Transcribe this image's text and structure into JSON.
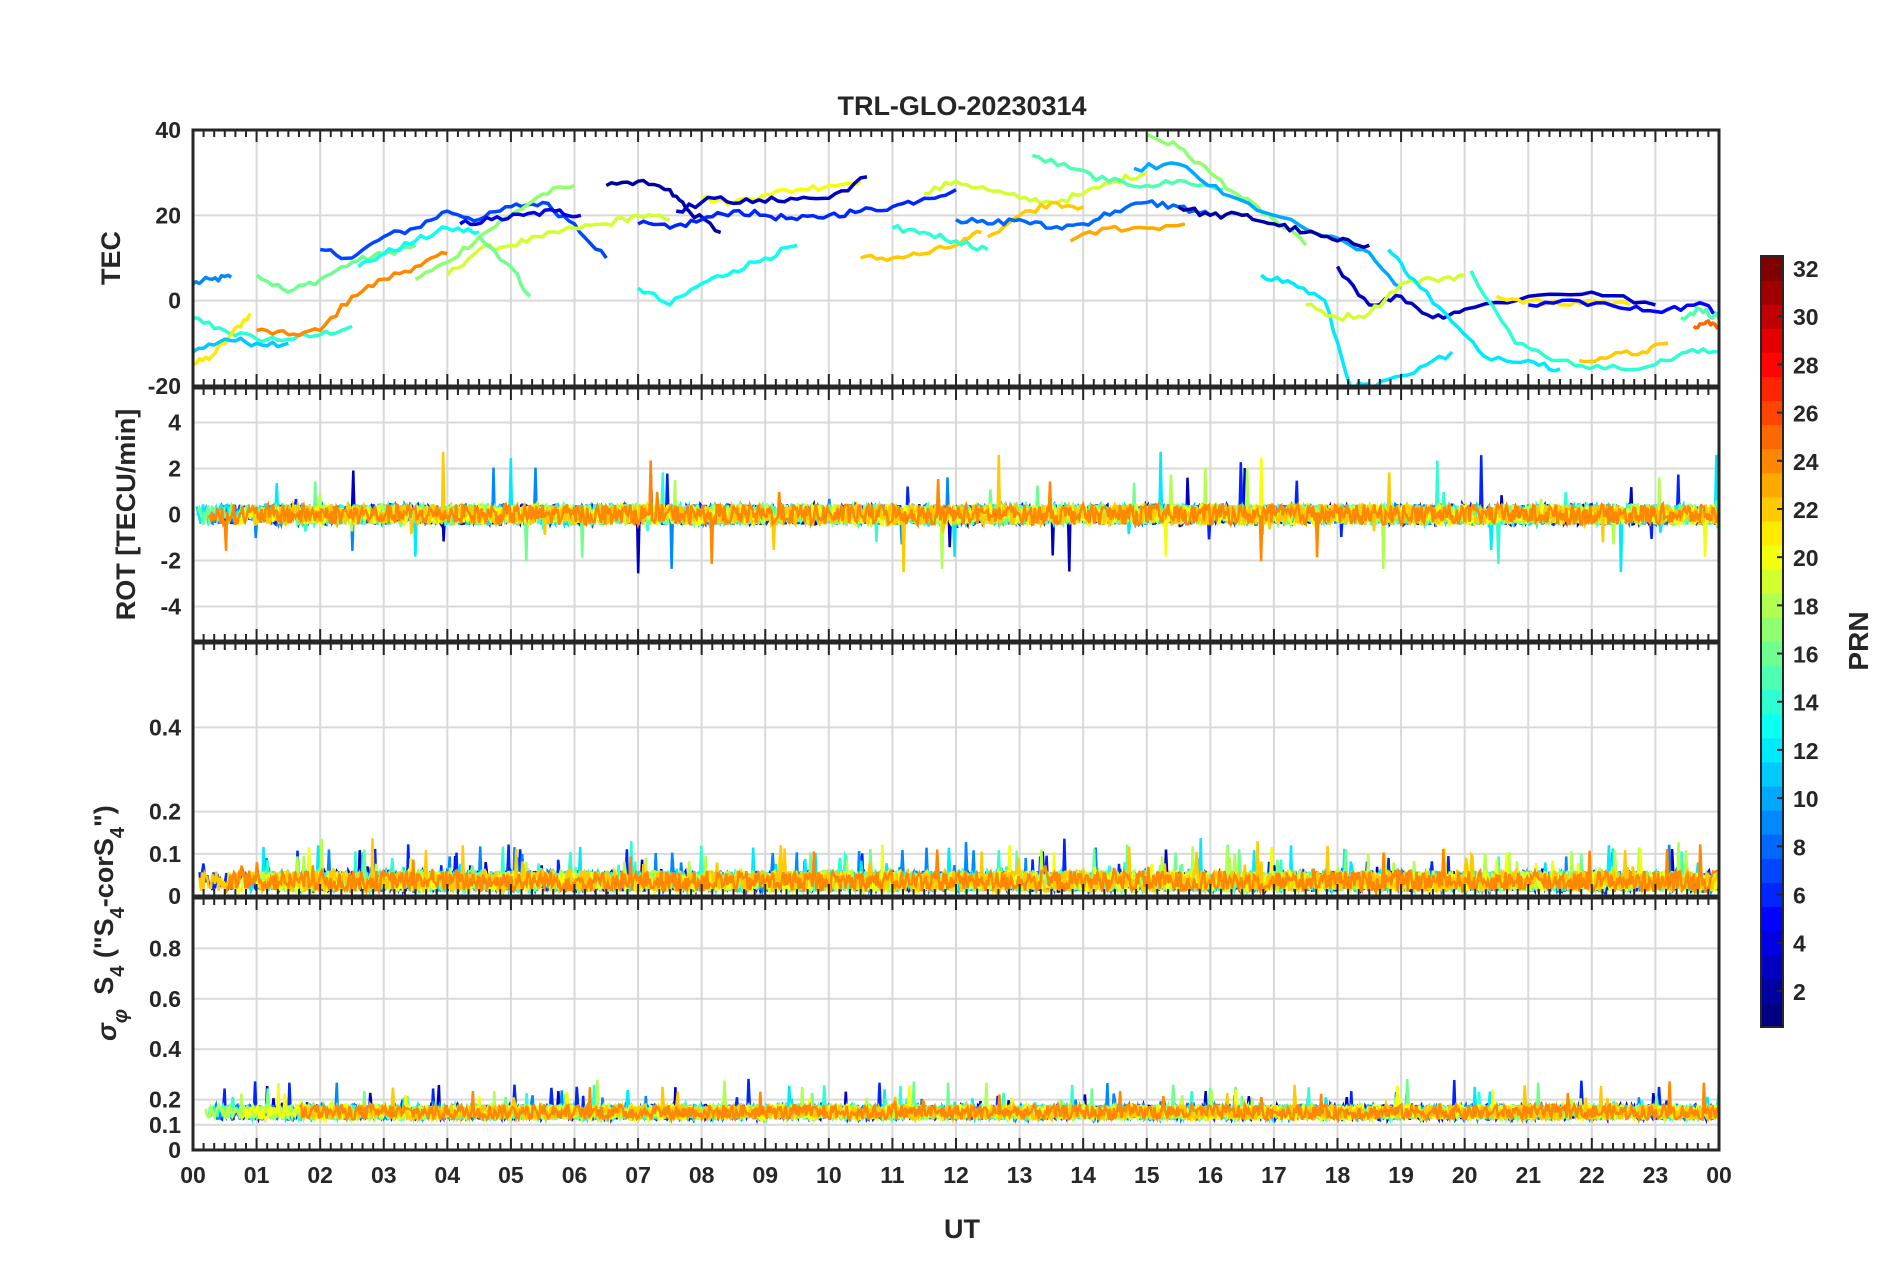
{
  "chart_data": {
    "type": "line",
    "title": "TRL-GLO-20230314",
    "xlabel": "UT",
    "x_ticks": [
      "00",
      "01",
      "02",
      "03",
      "04",
      "05",
      "06",
      "07",
      "08",
      "09",
      "10",
      "11",
      "12",
      "13",
      "14",
      "15",
      "16",
      "17",
      "18",
      "19",
      "20",
      "21",
      "22",
      "23",
      "00"
    ],
    "xlim": [
      0,
      24
    ],
    "colorbar": {
      "label": "PRN",
      "range": [
        1,
        32
      ],
      "ticks": [
        "2",
        "4",
        "6",
        "8",
        "10",
        "12",
        "14",
        "16",
        "18",
        "20",
        "22",
        "24",
        "26",
        "28",
        "30",
        "32"
      ],
      "colormap": "jet"
    },
    "panels": [
      {
        "name": "tec",
        "ylabel": "TEC",
        "ylim": [
          -20,
          40
        ],
        "y_ticks": [
          "40",
          "20",
          "0",
          "-20"
        ],
        "series": [
          {
            "prn": 9,
            "x": [
              0,
              0.3,
              0.6
            ],
            "y": [
              4,
              5,
              5.5
            ]
          },
          {
            "prn": 14,
            "x": [
              0,
              0.5,
              1.0,
              1.5,
              2.0,
              2.5
            ],
            "y": [
              -4,
              -7,
              -9,
              -9,
              -8,
              -6
            ]
          },
          {
            "prn": 21,
            "x": [
              0,
              0.3,
              0.6,
              0.9
            ],
            "y": [
              -15,
              -13,
              -8,
              -3
            ]
          },
          {
            "prn": 11,
            "x": [
              0,
              0.5,
              1.0,
              1.5
            ],
            "y": [
              -12,
              -9,
              -10,
              -10
            ]
          },
          {
            "prn": 16,
            "x": [
              1.0,
              1.5,
              2.0,
              2.5,
              3.0,
              3.5
            ],
            "y": [
              6,
              2,
              5,
              9,
              11,
              13
            ]
          },
          {
            "prn": 24,
            "x": [
              1.0,
              1.5,
              2.0,
              2.5,
              3.0,
              3.5,
              4.0
            ],
            "y": [
              -7,
              -8,
              -7,
              1,
              5,
              8,
              11
            ]
          },
          {
            "prn": 7,
            "x": [
              2.0,
              2.5,
              3.0,
              3.5,
              4.0,
              4.5,
              5.0,
              5.5,
              6.0,
              6.5
            ],
            "y": [
              12,
              10,
              15,
              17,
              21,
              19,
              22,
              23,
              18,
              10
            ]
          },
          {
            "prn": 13,
            "x": [
              2.6,
              3.0,
              3.5,
              4.0,
              4.5
            ],
            "y": [
              8,
              11,
              14,
              17,
              16
            ]
          },
          {
            "prn": 17,
            "x": [
              3.5,
              4.0,
              4.5,
              5.0,
              5.5,
              6.0
            ],
            "y": [
              5,
              9,
              15,
              20,
              25,
              27
            ]
          },
          {
            "prn": 19,
            "x": [
              4.0,
              4.5,
              5.0,
              5.5,
              6.0,
              6.5,
              7.0,
              7.5
            ],
            "y": [
              6,
              12,
              13,
              15,
              17,
              18,
              20,
              19
            ]
          },
          {
            "prn": 4,
            "x": [
              4.2,
              4.7,
              5.2,
              5.7,
              6.1
            ],
            "y": [
              18,
              19,
              20,
              21,
              20
            ]
          },
          {
            "prn": 16,
            "x": [
              4.5,
              5.0,
              5.3
            ],
            "y": [
              15,
              8,
              1
            ]
          },
          {
            "prn": 2,
            "x": [
              6.5,
              7.0,
              7.5,
              7.8,
              8.3
            ],
            "y": [
              27,
              28,
              26,
              21,
              16
            ]
          },
          {
            "prn": 13,
            "x": [
              7.0,
              7.5,
              8.0,
              8.5,
              9.0,
              9.5
            ],
            "y": [
              3,
              -1,
              4,
              7,
              10,
              13
            ]
          },
          {
            "prn": 6,
            "x": [
              7.0,
              7.5,
              8.0,
              8.5,
              9.0,
              9.5,
              10.0,
              10.5,
              11.0,
              11.5,
              12.0
            ],
            "y": [
              18,
              17,
              19,
              21,
              20,
              19,
              20,
              21,
              22,
              24,
              26
            ]
          },
          {
            "prn": 20,
            "x": [
              8.0,
              8.5,
              9.0,
              9.5,
              10.0,
              10.5
            ],
            "y": [
              24,
              23,
              25,
              26,
              27,
              28
            ]
          },
          {
            "prn": 3,
            "x": [
              7.6,
              8.2,
              8.8,
              9.4,
              10.0,
              10.6
            ],
            "y": [
              21,
              24,
              23,
              24,
              24,
              29
            ]
          },
          {
            "prn": 22,
            "x": [
              10.5,
              11.0,
              11.5,
              12.0,
              12.4
            ],
            "y": [
              10,
              10,
              11,
              13,
              16
            ]
          },
          {
            "prn": 14,
            "x": [
              11.0,
              11.5,
              12.0,
              12.5
            ],
            "y": [
              17,
              16,
              14,
              12
            ]
          },
          {
            "prn": 19,
            "x": [
              11.5,
              12.0,
              12.5,
              13.0,
              13.5,
              14.0,
              14.5,
              15.0
            ],
            "y": [
              25,
              28,
              26,
              24,
              23,
              25,
              28,
              30
            ]
          },
          {
            "prn": 22,
            "x": [
              12.5,
              13.0,
              13.5,
              14.0
            ],
            "y": [
              15,
              20,
              23,
              22
            ]
          },
          {
            "prn": 8,
            "x": [
              12.0,
              12.5,
              13.0,
              13.5,
              14.0,
              14.5,
              15.0,
              15.5,
              16.0
            ],
            "y": [
              19,
              18,
              19,
              17,
              18,
              21,
              23,
              22,
              20
            ]
          },
          {
            "prn": 15,
            "x": [
              13.2,
              13.8,
              14.4,
              15.0,
              15.6,
              16.2
            ],
            "y": [
              34,
              31,
              28,
              27,
              28,
              26
            ]
          },
          {
            "prn": 17,
            "x": [
              15.0,
              15.5,
              16.0,
              16.5,
              17.0,
              17.5
            ],
            "y": [
              39,
              36,
              30,
              24,
              19,
              13
            ]
          },
          {
            "prn": 10,
            "x": [
              14.8,
              15.5,
              16.2,
              17.0,
              17.8,
              18.4,
              19.0
            ],
            "y": [
              31,
              32,
              25,
              20,
              15,
              12,
              3
            ]
          },
          {
            "prn": 23,
            "x": [
              13.8,
              14.4,
              15.0,
              15.6
            ],
            "y": [
              14,
              17,
              17,
              18
            ]
          },
          {
            "prn": 2,
            "x": [
              15.5,
              16.0,
              16.5,
              17.0,
              17.5,
              18.0,
              18.5
            ],
            "y": [
              22,
              20,
              20,
              18,
              16,
              14,
              13
            ]
          },
          {
            "prn": 12,
            "x": [
              16.8,
              17.3,
              17.8,
              18.2,
              18.6,
              19.2,
              19.8
            ],
            "y": [
              6,
              4,
              0,
              -20,
              -20,
              -17,
              -12
            ]
          },
          {
            "prn": 3,
            "x": [
              18.0,
              18.5,
              19.0,
              19.5,
              20.0,
              21.0,
              22.0,
              23.0
            ],
            "y": [
              8,
              -1,
              1,
              -4,
              -2,
              1,
              2,
              -1
            ]
          },
          {
            "prn": 19,
            "x": [
              17.5,
              18.0,
              18.5,
              19.0,
              19.5,
              20.0
            ],
            "y": [
              -1,
              -4,
              -3,
              4,
              5,
              6
            ]
          },
          {
            "prn": 12,
            "x": [
              18.8,
              19.2,
              19.8,
              20.3,
              21.0,
              21.5
            ],
            "y": [
              12,
              5,
              -5,
              -13,
              -14,
              -16
            ]
          },
          {
            "prn": 14,
            "x": [
              20.1,
              20.8,
              21.5,
              22.2,
              23.0,
              23.5,
              24.0
            ],
            "y": [
              7,
              -10,
              -14,
              -16,
              -15,
              -12,
              -12
            ]
          },
          {
            "prn": 21,
            "x": [
              20.5,
              21.0,
              21.5,
              22.0,
              22.6
            ],
            "y": [
              1,
              0,
              -1,
              0,
              -1
            ]
          },
          {
            "prn": 22,
            "x": [
              21.8,
              22.3,
              22.8,
              23.2
            ],
            "y": [
              -14,
              -13,
              -12,
              -10
            ]
          },
          {
            "prn": 5,
            "x": [
              21.0,
              21.8,
              22.6,
              23.2,
              23.8,
              24.0
            ],
            "y": [
              -1,
              0,
              -2,
              -2,
              -1,
              -3
            ]
          },
          {
            "prn": 25,
            "x": [
              23.6,
              23.8,
              24.0
            ],
            "y": [
              -6,
              -5,
              -6
            ]
          },
          {
            "prn": 15,
            "x": [
              23.4,
              23.7,
              24.0
            ],
            "y": [
              -4,
              -2,
              -4
            ]
          }
        ]
      },
      {
        "name": "rot",
        "ylabel": "ROT [TECU/min]",
        "ylim": [
          -5.5,
          5.5
        ],
        "y_ticks": [
          "4",
          "2",
          "0",
          "-2",
          "-4"
        ]
      },
      {
        "name": "s4",
        "ylabel": "S4 (\"S4-corS4\")",
        "ylim": [
          0,
          0.6
        ],
        "y_ticks": [
          "0.4",
          "0.2",
          "0.1",
          "0"
        ]
      },
      {
        "name": "sigma",
        "ylabel": "σφ",
        "ylim": [
          0,
          1
        ],
        "y_ticks": [
          "0.8",
          "0.6",
          "0.4",
          "0.2",
          "0.1",
          "0"
        ]
      }
    ]
  },
  "labels": {
    "s4_main": "S",
    "s4_sub": "4",
    "s4_open": " (\"S",
    "s4_sub2": "4",
    "s4_mid": "-corS",
    "s4_sub3": "4",
    "s4_close": "\")",
    "sigma_main": "σ",
    "sigma_sub": "φ"
  }
}
